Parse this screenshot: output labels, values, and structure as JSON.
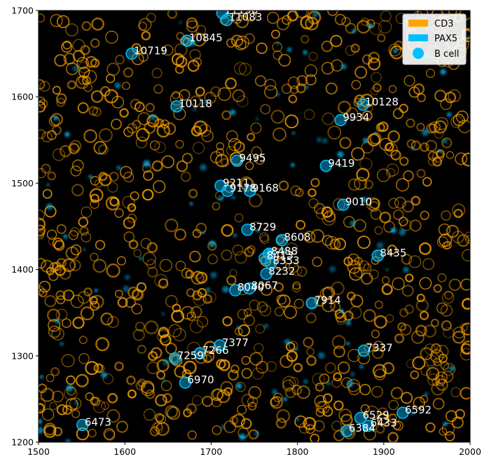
{
  "colors": {
    "cd3": "#ffa500",
    "pax5": "#00bfff",
    "bcell": "#00bfff",
    "background": "#000000",
    "text": "#ffffff"
  },
  "legend": {
    "items": [
      {
        "label": "CD3",
        "kind": "patch",
        "color": "#ffa500"
      },
      {
        "label": "PAX5",
        "kind": "patch",
        "color": "#00bfff"
      },
      {
        "label": "B cell",
        "kind": "circle",
        "color": "#00bfff"
      }
    ]
  },
  "chart_data": {
    "type": "scatter",
    "xlim": [
      1500,
      2000
    ],
    "ylim": [
      1200,
      1700
    ],
    "x_ticks": [
      "1500",
      "1600",
      "1700",
      "1800",
      "1900",
      "2000"
    ],
    "y_ticks": [
      "1200",
      "1300",
      "1400",
      "1500",
      "1600",
      "1700"
    ],
    "grid": false,
    "legend_position": "top-right",
    "cells": [
      {
        "id": "11083",
        "x": 1718,
        "y": 1689
      },
      {
        "id": "11136",
        "x": 1713,
        "y": 1697
      },
      {
        "id": "10845",
        "x": 1672,
        "y": 1665
      },
      {
        "id": "10719",
        "x": 1608,
        "y": 1650
      },
      {
        "id": "10118",
        "x": 1660,
        "y": 1589
      },
      {
        "id": "10128",
        "x": 1876,
        "y": 1591
      },
      {
        "id": "9934",
        "x": 1850,
        "y": 1573
      },
      {
        "id": "9495",
        "x": 1730,
        "y": 1526
      },
      {
        "id": "9419",
        "x": 1833,
        "y": 1520
      },
      {
        "id": "9211",
        "x": 1711,
        "y": 1497
      },
      {
        "id": "9178",
        "x": 1719,
        "y": 1491
      },
      {
        "id": "9168",
        "x": 1745,
        "y": 1491
      },
      {
        "id": "9010",
        "x": 1853,
        "y": 1475
      },
      {
        "id": "8729",
        "x": 1742,
        "y": 1446
      },
      {
        "id": "8608",
        "x": 1782,
        "y": 1434
      },
      {
        "id": "8488",
        "x": 1767,
        "y": 1418
      },
      {
        "id": "8413",
        "x": 1762,
        "y": 1413
      },
      {
        "id": "8435",
        "x": 1893,
        "y": 1416
      },
      {
        "id": "8353",
        "x": 1769,
        "y": 1407
      },
      {
        "id": "8232",
        "x": 1764,
        "y": 1395
      },
      {
        "id": "8067",
        "x": 1744,
        "y": 1378
      },
      {
        "id": "8040",
        "x": 1728,
        "y": 1376
      },
      {
        "id": "7914",
        "x": 1817,
        "y": 1361
      },
      {
        "id": "7377",
        "x": 1710,
        "y": 1312
      },
      {
        "id": "7337",
        "x": 1877,
        "y": 1306
      },
      {
        "id": "7266",
        "x": 1687,
        "y": 1303
      },
      {
        "id": "7259",
        "x": 1658,
        "y": 1297
      },
      {
        "id": "6970",
        "x": 1670,
        "y": 1269
      },
      {
        "id": "6592",
        "x": 1922,
        "y": 1234
      },
      {
        "id": "6529",
        "x": 1873,
        "y": 1228
      },
      {
        "id": "6433",
        "x": 1882,
        "y": 1219
      },
      {
        "id": "6384",
        "x": 1857,
        "y": 1213
      },
      {
        "id": "6473",
        "x": 1551,
        "y": 1220
      }
    ]
  }
}
